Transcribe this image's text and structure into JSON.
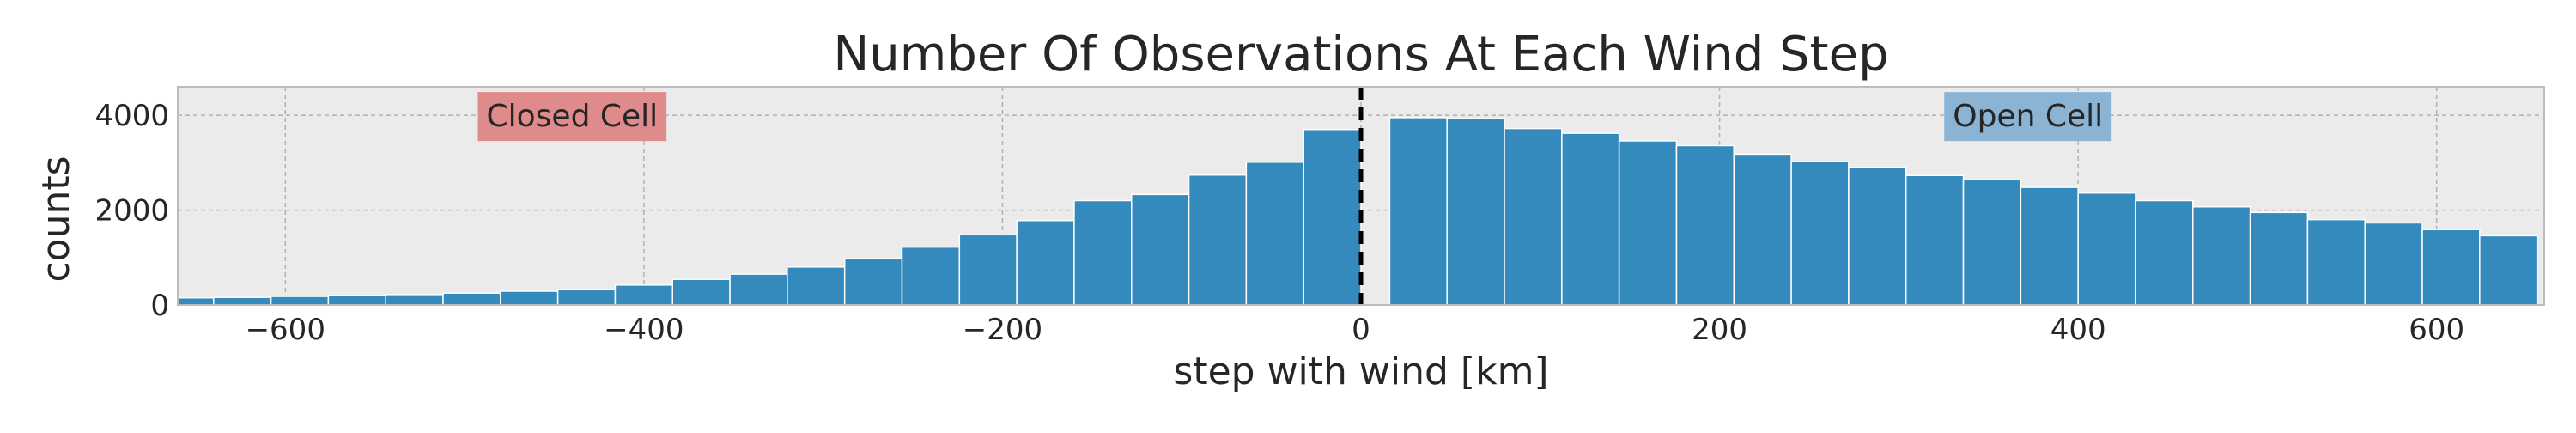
{
  "chart_data": {
    "type": "bar",
    "title": "Number Of Observations At Each Wind Step",
    "xlabel": "step with wind [km]",
    "ylabel": "counts",
    "xlim": [
      -660,
      660
    ],
    "ylim": [
      0,
      4600
    ],
    "x_ticks": [
      -600,
      -400,
      -200,
      0,
      200,
      400,
      600
    ],
    "x_tick_labels": [
      "−600",
      "−400",
      "−200",
      "0",
      "200",
      "400",
      "600"
    ],
    "y_ticks": [
      0,
      2000,
      4000
    ],
    "y_tick_labels": [
      "0",
      "2000",
      "4000"
    ],
    "grid": true,
    "bin_width": 32,
    "bars": [
      {
        "x0": -672,
        "x1": -640,
        "value": 150
      },
      {
        "x0": -640,
        "x1": -608,
        "value": 160
      },
      {
        "x0": -608,
        "x1": -576,
        "value": 180
      },
      {
        "x0": -576,
        "x1": -544,
        "value": 200
      },
      {
        "x0": -544,
        "x1": -512,
        "value": 220
      },
      {
        "x0": -512,
        "x1": -480,
        "value": 250
      },
      {
        "x0": -480,
        "x1": -448,
        "value": 290
      },
      {
        "x0": -448,
        "x1": -416,
        "value": 330
      },
      {
        "x0": -416,
        "x1": -384,
        "value": 420
      },
      {
        "x0": -384,
        "x1": -352,
        "value": 540
      },
      {
        "x0": -352,
        "x1": -320,
        "value": 650
      },
      {
        "x0": -320,
        "x1": -288,
        "value": 800
      },
      {
        "x0": -288,
        "x1": -256,
        "value": 980
      },
      {
        "x0": -256,
        "x1": -224,
        "value": 1220
      },
      {
        "x0": -224,
        "x1": -192,
        "value": 1480
      },
      {
        "x0": -192,
        "x1": -160,
        "value": 1780
      },
      {
        "x0": -160,
        "x1": -128,
        "value": 2200
      },
      {
        "x0": -128,
        "x1": -96,
        "value": 2330
      },
      {
        "x0": -96,
        "x1": -64,
        "value": 2740
      },
      {
        "x0": -64,
        "x1": -32,
        "value": 3010
      },
      {
        "x0": -32,
        "x1": 0,
        "value": 3700
      },
      {
        "x0": 16,
        "x1": 48,
        "value": 3950
      },
      {
        "x0": 48,
        "x1": 80,
        "value": 3930
      },
      {
        "x0": 80,
        "x1": 112,
        "value": 3720
      },
      {
        "x0": 112,
        "x1": 144,
        "value": 3620
      },
      {
        "x0": 144,
        "x1": 176,
        "value": 3460
      },
      {
        "x0": 176,
        "x1": 208,
        "value": 3360
      },
      {
        "x0": 208,
        "x1": 240,
        "value": 3180
      },
      {
        "x0": 240,
        "x1": 272,
        "value": 3020
      },
      {
        "x0": 272,
        "x1": 304,
        "value": 2900
      },
      {
        "x0": 304,
        "x1": 336,
        "value": 2730
      },
      {
        "x0": 336,
        "x1": 368,
        "value": 2640
      },
      {
        "x0": 368,
        "x1": 400,
        "value": 2480
      },
      {
        "x0": 400,
        "x1": 432,
        "value": 2360
      },
      {
        "x0": 432,
        "x1": 464,
        "value": 2200
      },
      {
        "x0": 464,
        "x1": 496,
        "value": 2070
      },
      {
        "x0": 496,
        "x1": 528,
        "value": 1950
      },
      {
        "x0": 528,
        "x1": 560,
        "value": 1800
      },
      {
        "x0": 560,
        "x1": 592,
        "value": 1730
      },
      {
        "x0": 592,
        "x1": 624,
        "value": 1590
      },
      {
        "x0": 624,
        "x1": 656,
        "value": 1460
      }
    ],
    "vline": {
      "x": 0,
      "style": "dashed",
      "color": "#000000"
    },
    "annotations": [
      {
        "text": "Closed Cell",
        "x": -440,
        "y": 4000,
        "box_color": "#e08b8b"
      },
      {
        "text": "Open Cell",
        "x": 372,
        "y": 4000,
        "box_color": "#8bb4d4"
      }
    ],
    "colors": {
      "bar": "#348abd",
      "bar_edge": "#ffffff",
      "plot_background": "#ebebeb",
      "grid": "#b0b0b0",
      "axes_edge": "#bcbcbc"
    }
  }
}
